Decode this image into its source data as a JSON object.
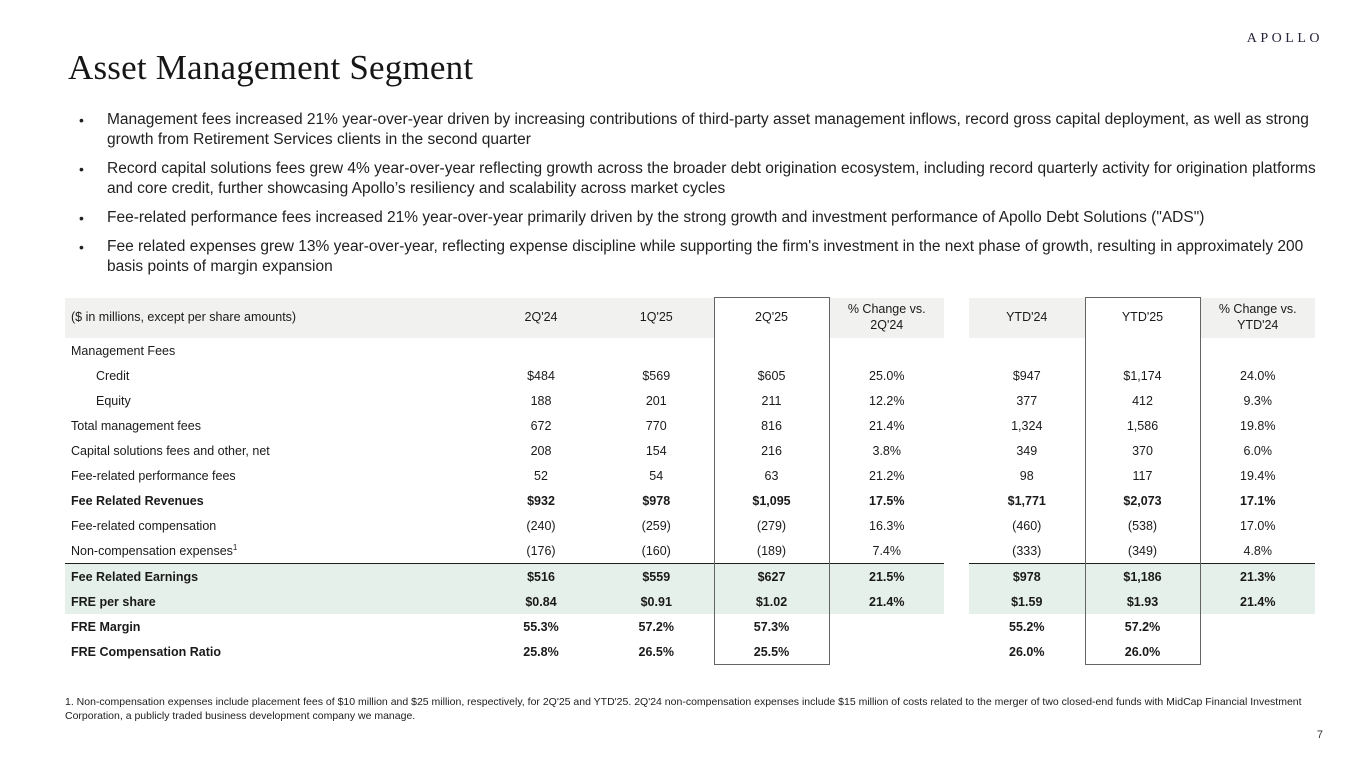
{
  "brand": {
    "logo": "APOLLO"
  },
  "page": {
    "title": "Asset Management Segment",
    "number": "7"
  },
  "bullets": [
    "Management fees increased 21% year-over-year driven by increasing contributions of third-party asset management inflows, record gross capital deployment, as well as strong growth from Retirement Services clients in the second quarter",
    "Record capital solutions fees grew 4% year-over-year reflecting growth across the broader debt origination ecosystem, including record quarterly activity for origination platforms and core credit, further showcasing Apollo’s resiliency and scalability across market cycles",
    "Fee-related performance fees increased 21% year-over-year primarily driven by the strong growth and investment performance of Apollo Debt Solutions (\"ADS\")",
    "Fee related expenses grew 13% year-over-year, reflecting expense discipline while supporting the firm's investment in the next phase of growth, resulting in approximately 200 basis points of margin expansion"
  ],
  "table": {
    "col_label": "($ in millions, except per share amounts)",
    "columns": [
      "2Q'24",
      "1Q'25",
      "2Q'25",
      "% Change vs. 2Q'24",
      "YTD'24",
      "YTD'25",
      "% Change vs. YTD'24"
    ],
    "rows": [
      {
        "label": "Management Fees",
        "style": "section",
        "values": [
          "",
          "",
          "",
          "",
          "",
          "",
          ""
        ]
      },
      {
        "label": "Credit",
        "style": "indent",
        "values": [
          "$484",
          "$569",
          "$605",
          "25.0%",
          "$947",
          "$1,174",
          "24.0%"
        ]
      },
      {
        "label": "Equity",
        "style": "indent",
        "values": [
          "188",
          "201",
          "211",
          "12.2%",
          "377",
          "412",
          "9.3%"
        ]
      },
      {
        "label": "Total management fees",
        "style": "",
        "values": [
          "672",
          "770",
          "816",
          "21.4%",
          "1,324",
          "1,586",
          "19.8%"
        ]
      },
      {
        "label": "Capital solutions fees and other, net",
        "style": "",
        "values": [
          "208",
          "154",
          "216",
          "3.8%",
          "349",
          "370",
          "6.0%"
        ]
      },
      {
        "label": "Fee-related performance fees",
        "style": "",
        "values": [
          "52",
          "54",
          "63",
          "21.2%",
          "98",
          "117",
          "19.4%"
        ]
      },
      {
        "label": "Fee Related Revenues",
        "style": "total",
        "values": [
          "$932",
          "$978",
          "$1,095",
          "17.5%",
          "$1,771",
          "$2,073",
          "17.1%"
        ]
      },
      {
        "label": "Fee-related compensation",
        "style": "",
        "values": [
          "(240)",
          "(259)",
          "(279)",
          "16.3%",
          "(460)",
          "(538)",
          "17.0%"
        ]
      },
      {
        "label": "Non-compensation expenses",
        "sup": "1",
        "style": "",
        "values": [
          "(176)",
          "(160)",
          "(189)",
          "7.4%",
          "(333)",
          "(349)",
          "4.8%"
        ]
      },
      {
        "label": "Fee Related Earnings",
        "style": "total highlight rule",
        "values": [
          "$516",
          "$559",
          "$627",
          "21.5%",
          "$978",
          "$1,186",
          "21.3%"
        ]
      },
      {
        "label": "FRE per share",
        "style": "total highlight",
        "values": [
          "$0.84",
          "$0.91",
          "$1.02",
          "21.4%",
          "$1.59",
          "$1.93",
          "21.4%"
        ]
      },
      {
        "label": "FRE Margin",
        "style": "total",
        "values": [
          "55.3%",
          "57.2%",
          "57.3%",
          "",
          "55.2%",
          "57.2%",
          ""
        ]
      },
      {
        "label": "FRE Compensation Ratio",
        "style": "total",
        "values": [
          "25.8%",
          "26.5%",
          "25.5%",
          "",
          "26.0%",
          "26.0%",
          ""
        ]
      }
    ]
  },
  "footnote": "1. Non-compensation expenses include placement fees of $10 million and $25 million, respectively, for 2Q'25 and YTD'25. 2Q'24 non-compensation expenses include $15 million of costs related to the merger of two closed-end funds with MidCap Financial Investment Corporation, a publicly traded business development company we manage."
}
